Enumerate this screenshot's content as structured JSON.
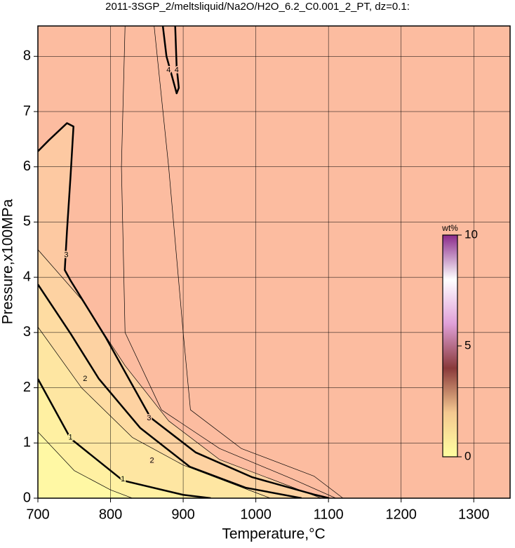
{
  "chart_data": {
    "type": "contour",
    "title": "2011-3SGP_2/meltsliquid/Na2O/H2O_6.2_C0.001_2_PT, dz=0.1:",
    "x_label": "Temperature,°C",
    "y_label": "Pressure,x100MPa",
    "xlim": [
      700,
      1350
    ],
    "ylim": [
      0,
      8.55
    ],
    "xticks": [
      700,
      800,
      900,
      1000,
      1100,
      1200,
      1300
    ],
    "yticks": [
      0,
      1,
      2,
      3,
      4,
      5,
      6,
      7,
      8
    ],
    "grid": true,
    "background": "#fcbca0",
    "contours": [
      {
        "level": 3,
        "thick": true,
        "fill": "#fdc9a2",
        "points": [
          [
            700,
            6.28
          ],
          [
            715,
            6.48
          ],
          [
            740,
            6.79
          ],
          [
            749,
            6.73
          ],
          [
            745,
            5.84
          ],
          [
            740,
            4.83
          ],
          [
            737,
            4.13
          ],
          [
            745,
            3.94
          ],
          [
            793,
            2.92
          ],
          [
            855,
            1.46
          ],
          [
            917,
            0.83
          ],
          [
            995,
            0.38
          ],
          [
            1082,
            0.06
          ],
          [
            1101,
            0
          ]
        ],
        "label_at": [
          [
            739,
            4.4
          ],
          [
            853,
            1.45
          ]
        ]
      },
      {
        "level": 2.5,
        "thick": false,
        "fill": "#fdd2a2",
        "points": [
          [
            700,
            4.5
          ],
          [
            760,
            3.6
          ],
          [
            820,
            2.4
          ],
          [
            880,
            1.4
          ],
          [
            950,
            0.7
          ],
          [
            1050,
            0.2
          ],
          [
            1090,
            0
          ]
        ]
      },
      {
        "level": 2,
        "thick": true,
        "fill": "#fedca2",
        "points": [
          [
            700,
            3.87
          ],
          [
            745,
            2.98
          ],
          [
            784,
            2.16
          ],
          [
            841,
            1.27
          ],
          [
            909,
            0.57
          ],
          [
            986,
            0.19
          ],
          [
            1063,
            0
          ]
        ],
        "label_at": [
          [
            765,
            2.16
          ],
          [
            857,
            0.68
          ]
        ]
      },
      {
        "level": 1.5,
        "thick": false,
        "fill": "#fee6a2",
        "points": [
          [
            700,
            3.1
          ],
          [
            760,
            2.0
          ],
          [
            830,
            1.1
          ],
          [
            900,
            0.6
          ],
          [
            1000,
            0.1
          ],
          [
            1020,
            0
          ]
        ]
      },
      {
        "level": 1,
        "thick": true,
        "fill": "#fff0a2",
        "points": [
          [
            700,
            2.16
          ],
          [
            745,
            1.08
          ],
          [
            817,
            0.32
          ],
          [
            900,
            0.06
          ],
          [
            938,
            0
          ]
        ],
        "label_at": [
          [
            745,
            1.1
          ],
          [
            817,
            0.34
          ]
        ]
      },
      {
        "level": 0.5,
        "thick": false,
        "fill": "#fff8a4",
        "points": [
          [
            700,
            1.2
          ],
          [
            750,
            0.5
          ],
          [
            800,
            0.15
          ],
          [
            830,
            0
          ]
        ]
      },
      {
        "level": 3.5,
        "thick": false,
        "points": [
          [
            820,
            8.55
          ],
          [
            815,
            6
          ],
          [
            820,
            3
          ],
          [
            870,
            1.6
          ],
          [
            950,
            0.9
          ],
          [
            1050,
            0.35
          ],
          [
            1110,
            0
          ]
        ]
      },
      {
        "level": 3.8,
        "thick": false,
        "points": [
          [
            860,
            8.55
          ],
          [
            880,
            6
          ],
          [
            900,
            3
          ],
          [
            910,
            1.6
          ],
          [
            980,
            0.9
          ],
          [
            1080,
            0.4
          ],
          [
            1120,
            0
          ]
        ]
      },
      {
        "level": 4,
        "thick": true,
        "points": [
          [
            872,
            8.55
          ],
          [
            877,
            8.0
          ],
          [
            885,
            7.62
          ],
          [
            891,
            7.33
          ],
          [
            894,
            7.43
          ],
          [
            891,
            7.81
          ],
          [
            889,
            8.55
          ]
        ],
        "label_at": [
          [
            880,
            7.75
          ],
          [
            891,
            7.75
          ]
        ]
      }
    ],
    "colorbar": {
      "label": "wt%",
      "lim": [
        0,
        10
      ],
      "ticks": [
        0,
        5,
        10
      ],
      "colors": [
        "#ffffa0",
        "#f4c890",
        "#8a3a3a",
        "#e0a0d8",
        "#ffffff",
        "#8a2a8a"
      ]
    }
  }
}
